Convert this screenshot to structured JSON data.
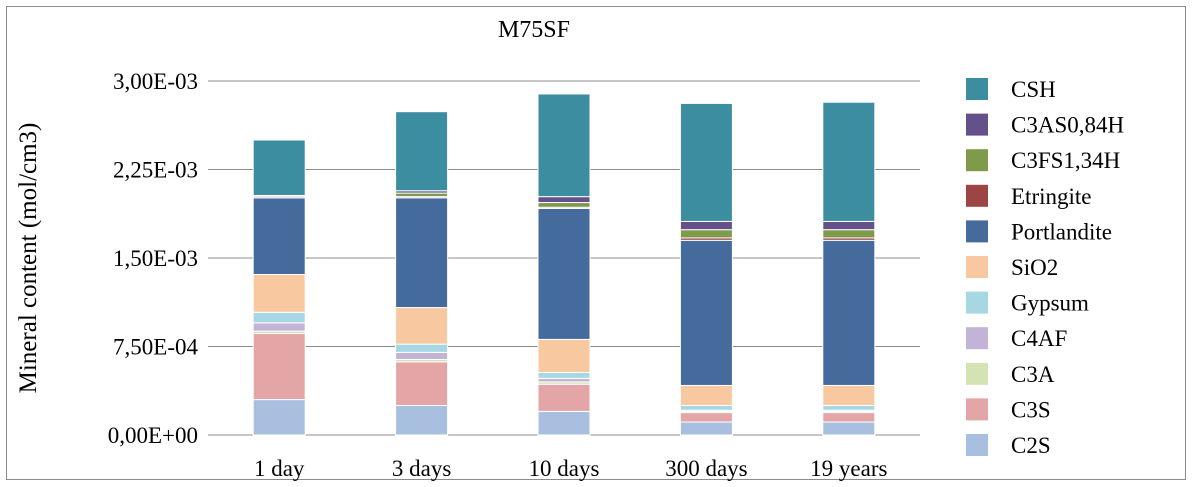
{
  "chart_data": {
    "type": "bar",
    "stacked": true,
    "title": "M75SF",
    "xlabel": "",
    "ylabel": "Mineral content (mol/cm3)",
    "ylim": [
      0,
      0.003
    ],
    "yticks": [
      0,
      0.00075,
      0.0015,
      0.00225,
      0.003
    ],
    "ytick_labels": [
      "0,00E+00",
      "7,50E-04",
      "1,50E-03",
      "2,25E-03",
      "3,00E-03"
    ],
    "grid": true,
    "legend_position": "right",
    "categories": [
      "1 day",
      "3 days",
      "10 days",
      "300 days",
      "19 years"
    ],
    "series": [
      {
        "name": "C2S",
        "color": "#a8bfe0",
        "values": [
          0.0003,
          0.00025,
          0.0002,
          0.00011,
          0.00011
        ]
      },
      {
        "name": "C3S",
        "color": "#e3a5a6",
        "values": [
          0.00056,
          0.00037,
          0.00023,
          8e-05,
          8e-05
        ]
      },
      {
        "name": "C3A",
        "color": "#d4e3b4",
        "values": [
          2e-05,
          2e-05,
          2e-05,
          1e-05,
          1e-05
        ]
      },
      {
        "name": "C4AF",
        "color": "#c3b3d6",
        "values": [
          7e-05,
          6e-05,
          3e-05,
          1e-05,
          1e-05
        ]
      },
      {
        "name": "Gypsum",
        "color": "#a6d7e3",
        "values": [
          9e-05,
          7e-05,
          5e-05,
          4e-05,
          4e-05
        ]
      },
      {
        "name": "SiO2",
        "color": "#f8c8a0",
        "values": [
          0.00032,
          0.00031,
          0.00028,
          0.00017,
          0.00017
        ]
      },
      {
        "name": "Portlandite",
        "color": "#456a9c",
        "values": [
          0.00065,
          0.00093,
          0.00111,
          0.00123,
          0.00123
        ]
      },
      {
        "name": "Etringite",
        "color": "#9c4544",
        "values": [
          1e-05,
          1e-05,
          1e-05,
          2e-05,
          2e-05
        ]
      },
      {
        "name": "C3FS1,34H",
        "color": "#7e9a4a",
        "values": [
          0.0,
          3e-05,
          4e-05,
          7e-05,
          7e-05
        ]
      },
      {
        "name": "C3AS0,84H",
        "color": "#64518a",
        "values": [
          1e-05,
          2e-05,
          5e-05,
          7e-05,
          7e-05
        ]
      },
      {
        "name": "CSH",
        "color": "#3d8da1",
        "values": [
          0.00047,
          0.00067,
          0.00087,
          0.001,
          0.00101
        ]
      }
    ]
  }
}
